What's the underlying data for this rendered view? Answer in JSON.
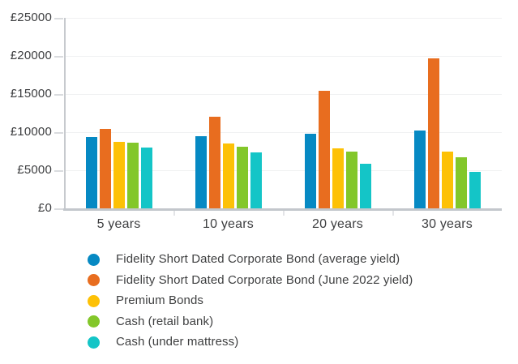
{
  "chart_data": {
    "type": "bar",
    "title": "",
    "xlabel": "",
    "ylabel": "",
    "grid": true,
    "legend_position": "bottom",
    "categories": [
      "5 years",
      "10 years",
      "20 years",
      "30 years"
    ],
    "series": [
      {
        "name": "Fidelity Short Dated Corporate Bond (average yield)",
        "color": "#0689c3",
        "values": [
          9300,
          9450,
          9800,
          10150
        ]
      },
      {
        "name": "Fidelity Short Dated Corporate Bond (June 2022 yield)",
        "color": "#e86d1f",
        "values": [
          10450,
          11950,
          15350,
          19650
        ]
      },
      {
        "name": "Premium Bonds",
        "color": "#fdc106",
        "values": [
          8700,
          8500,
          7900,
          7450
        ]
      },
      {
        "name": "Cash (retail bank)",
        "color": "#83c72a",
        "values": [
          8550,
          8100,
          7400,
          6650
        ]
      },
      {
        "name": "Cash (under mattress)",
        "color": "#14c5c7",
        "values": [
          7950,
          7300,
          5850,
          4750
        ]
      }
    ],
    "ylim": [
      0,
      25000
    ],
    "yticks": [
      {
        "value": 0,
        "label": "£0"
      },
      {
        "value": 5000,
        "label": "£5000"
      },
      {
        "value": 10000,
        "label": "£10000"
      },
      {
        "value": 15000,
        "label": "£15000"
      },
      {
        "value": 20000,
        "label": "£20000"
      },
      {
        "value": 25000,
        "label": "£25000"
      }
    ]
  },
  "colors": {
    "axis": "#c3c7cc",
    "gridline": "#f0f1f2",
    "text": "#3d3e40"
  }
}
